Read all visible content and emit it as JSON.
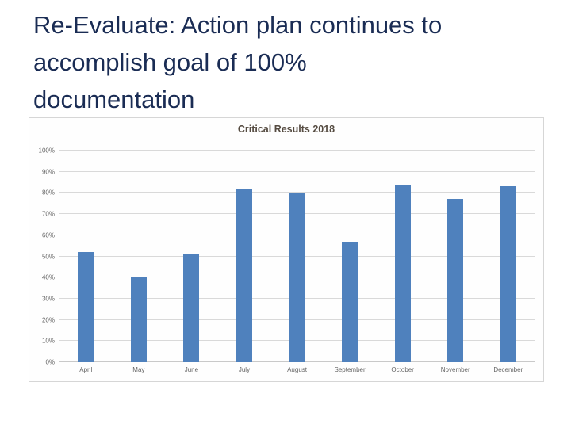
{
  "slide": {
    "title_lines": [
      "Re-Evaluate: Action plan continues to",
      "accomplish goal of 100%",
      "documentation"
    ]
  },
  "chart_data": {
    "type": "bar",
    "title": "Critical Results 2018",
    "categories": [
      "April",
      "May",
      "June",
      "July",
      "August",
      "September",
      "October",
      "November",
      "December"
    ],
    "values": [
      52,
      40,
      51,
      82,
      80,
      57,
      84,
      77,
      83
    ],
    "xlabel": "",
    "ylabel": "",
    "ylim": [
      0,
      100
    ],
    "ytick_step": 10,
    "ytick_suffix": "%",
    "grid": true,
    "legend": "none",
    "bar_color": "#4f81bd"
  },
  "colors": {
    "slide_title": "#1a2c54",
    "chart_title": "#554b41",
    "bar": "#4f81bd",
    "gridline": "#d9d9d9",
    "axis_text": "#666666",
    "chart_border": "#d6d6d6"
  }
}
